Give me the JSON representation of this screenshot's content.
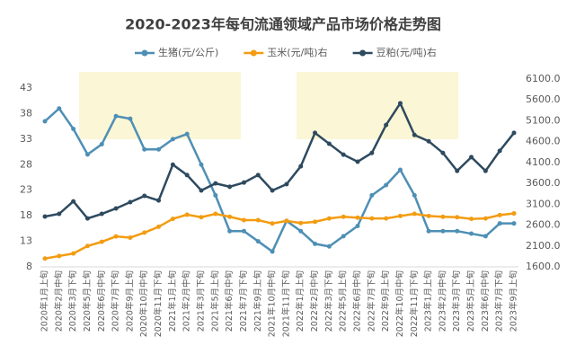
{
  "chart_data": {
    "type": "line",
    "title": "2020-2023年每旬流通领域产品市场价格走势图",
    "categories": [
      "2020年1月上旬",
      "2020年2月中旬",
      "2020年3月下旬",
      "2020年5月上旬",
      "2020年6月中旬",
      "2020年7月下旬",
      "2020年9月上旬",
      "2020年10月中旬",
      "2020年11月下旬",
      "2021年1月上旬",
      "2021年2月中旬",
      "2021年3月下旬",
      "2021年5月上旬",
      "2021年6月中旬",
      "2021年7月下旬",
      "2021年9月上旬",
      "2021年10月中旬",
      "2021年11月下旬",
      "2022年1月上旬",
      "2022年2月中旬",
      "2022年3月下旬",
      "2022年5月上旬",
      "2022年6月中旬",
      "2022年7月下旬",
      "2022年9月上旬",
      "2022年10月中旬",
      "2022年11月下旬",
      "2023年1月上旬",
      "2023年2月中旬",
      "2023年3月下旬",
      "2023年5月上旬",
      "2023年6月中旬",
      "2023年7月下旬",
      "2023年9月上旬"
    ],
    "series": [
      {
        "name": "生猪(元/公斤)",
        "color": "#4e8fb5",
        "values": [
          36.5,
          39,
          35,
          30,
          32,
          37.5,
          37,
          31,
          31,
          33,
          34,
          28,
          22,
          15,
          15,
          13,
          11,
          17,
          15,
          12.5,
          12,
          14,
          16,
          22,
          24,
          27,
          22,
          15,
          15,
          15,
          14.5,
          14,
          16.5,
          16.5
        ]
      },
      {
        "name": "玉米(元/吨)右",
        "color": "#f39c12",
        "axis": "y2",
        "values": [
          1800,
          1860,
          1920,
          2100,
          2200,
          2330,
          2300,
          2420,
          2560,
          2750,
          2850,
          2790,
          2870,
          2800,
          2720,
          2720,
          2640,
          2700,
          2650,
          2680,
          2760,
          2800,
          2780,
          2760,
          2760,
          2820,
          2870,
          2820,
          2800,
          2790,
          2750,
          2760,
          2840,
          2880
        ]
      },
      {
        "name": "豆粕(元/吨)右",
        "color": "#2e4a5f",
        "axis": "y2",
        "values": [
          2806,
          2870,
          3170,
          2760,
          2870,
          3000,
          3150,
          3300,
          3190,
          4050,
          3800,
          3430,
          3600,
          3520,
          3620,
          3800,
          3430,
          3580,
          4010,
          4810,
          4550,
          4290,
          4120,
          4330,
          5000,
          5520,
          4760,
          4610,
          4330,
          3900,
          4230,
          3900,
          4380,
          4810
        ]
      }
    ],
    "ylim": [
      8,
      43
    ],
    "yticks": [
      8,
      13,
      18,
      23,
      28,
      33,
      38,
      43
    ],
    "y2lim": [
      1600,
      6100
    ],
    "y2ticks": [
      {
        "value": 1600,
        "label": "1600.0"
      },
      {
        "value": 2100,
        "label": "2100.0"
      },
      {
        "value": 2600,
        "label": "2600.0"
      },
      {
        "value": 3100,
        "label": "3100.0"
      },
      {
        "value": 3600,
        "label": "3600.0"
      },
      {
        "value": 4100,
        "label": "4100.0"
      },
      {
        "value": 4600,
        "label": "4600.0"
      },
      {
        "value": 5100,
        "label": "5100.0"
      },
      {
        "value": 5600,
        "label": "5600.0"
      },
      {
        "value": 6100,
        "label": "6100.0"
      }
    ],
    "legend": "top"
  }
}
